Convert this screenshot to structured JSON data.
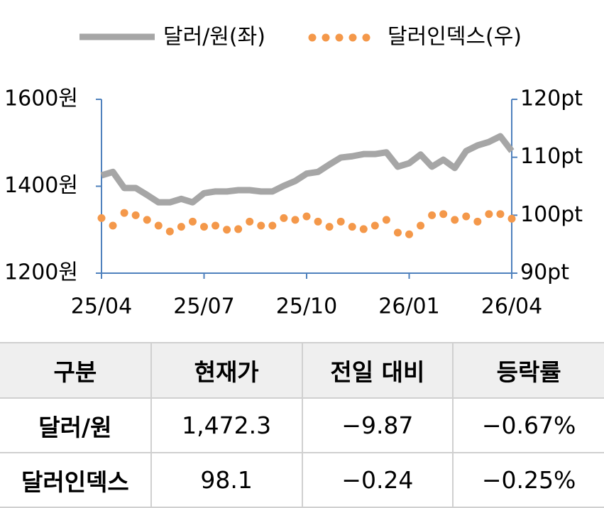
{
  "chart_data": {
    "type": "line",
    "legend": "top",
    "categories": [
      "25/04",
      null,
      null,
      null,
      null,
      null,
      null,
      null,
      null,
      "25/07",
      null,
      null,
      null,
      null,
      null,
      null,
      null,
      null,
      "25/10",
      null,
      null,
      null,
      null,
      null,
      null,
      null,
      null,
      "26/01",
      null,
      null,
      null,
      null,
      null,
      null,
      null,
      null,
      "26/04"
    ],
    "series": [
      {
        "name": "달러/원(좌)",
        "color": "#a6a6a6",
        "style": "line",
        "axis": "y",
        "values": [
          1425,
          1433,
          1396,
          1396,
          1380,
          1363,
          1363,
          1371,
          1363,
          1384,
          1388,
          1388,
          1391,
          1391,
          1388,
          1388,
          1401,
          1412,
          1429,
          1433,
          1450,
          1466,
          1469,
          1474,
          1474,
          1478,
          1445,
          1453,
          1473,
          1445,
          1461,
          1442,
          1481,
          1494,
          1502,
          1515,
          1481
        ]
      },
      {
        "name": "달러인덱스(우)",
        "color": "#f4984a",
        "style": "dots",
        "axis": "y2",
        "values": [
          99.5,
          98.2,
          100.4,
          100.0,
          99.2,
          98.2,
          97.2,
          98.0,
          98.9,
          98.0,
          98.2,
          97.5,
          97.6,
          98.9,
          98.2,
          98.2,
          99.5,
          99.2,
          99.8,
          98.9,
          98.0,
          98.9,
          98.0,
          97.6,
          98.2,
          99.2,
          97.0,
          96.7,
          98.2,
          100.0,
          100.2,
          99.2,
          99.8,
          98.9,
          100.2,
          100.2,
          99.4
        ]
      }
    ],
    "ylim": [
      1200,
      1600
    ],
    "yticks": [
      {
        "value": 1200,
        "label": "1200원"
      },
      {
        "value": 1400,
        "label": "1400원"
      },
      {
        "value": 1600,
        "label": "1600원"
      }
    ],
    "y2lim": [
      90,
      120
    ],
    "y2ticks": [
      {
        "value": 90,
        "label": "90pt"
      },
      {
        "value": 100,
        "label": "100pt"
      },
      {
        "value": 110,
        "label": "110pt"
      },
      {
        "value": 120,
        "label": "120pt"
      }
    ],
    "axis_color": "#4f81bd"
  },
  "table": {
    "header": [
      "구분",
      "현재가",
      "전일 대비",
      "등락률"
    ],
    "rows": [
      [
        "달러/원",
        "1,472.3",
        "−9.87",
        "−0.67%"
      ],
      [
        "달러인덱스",
        "98.1",
        "−0.24",
        "−0.25%"
      ]
    ]
  }
}
